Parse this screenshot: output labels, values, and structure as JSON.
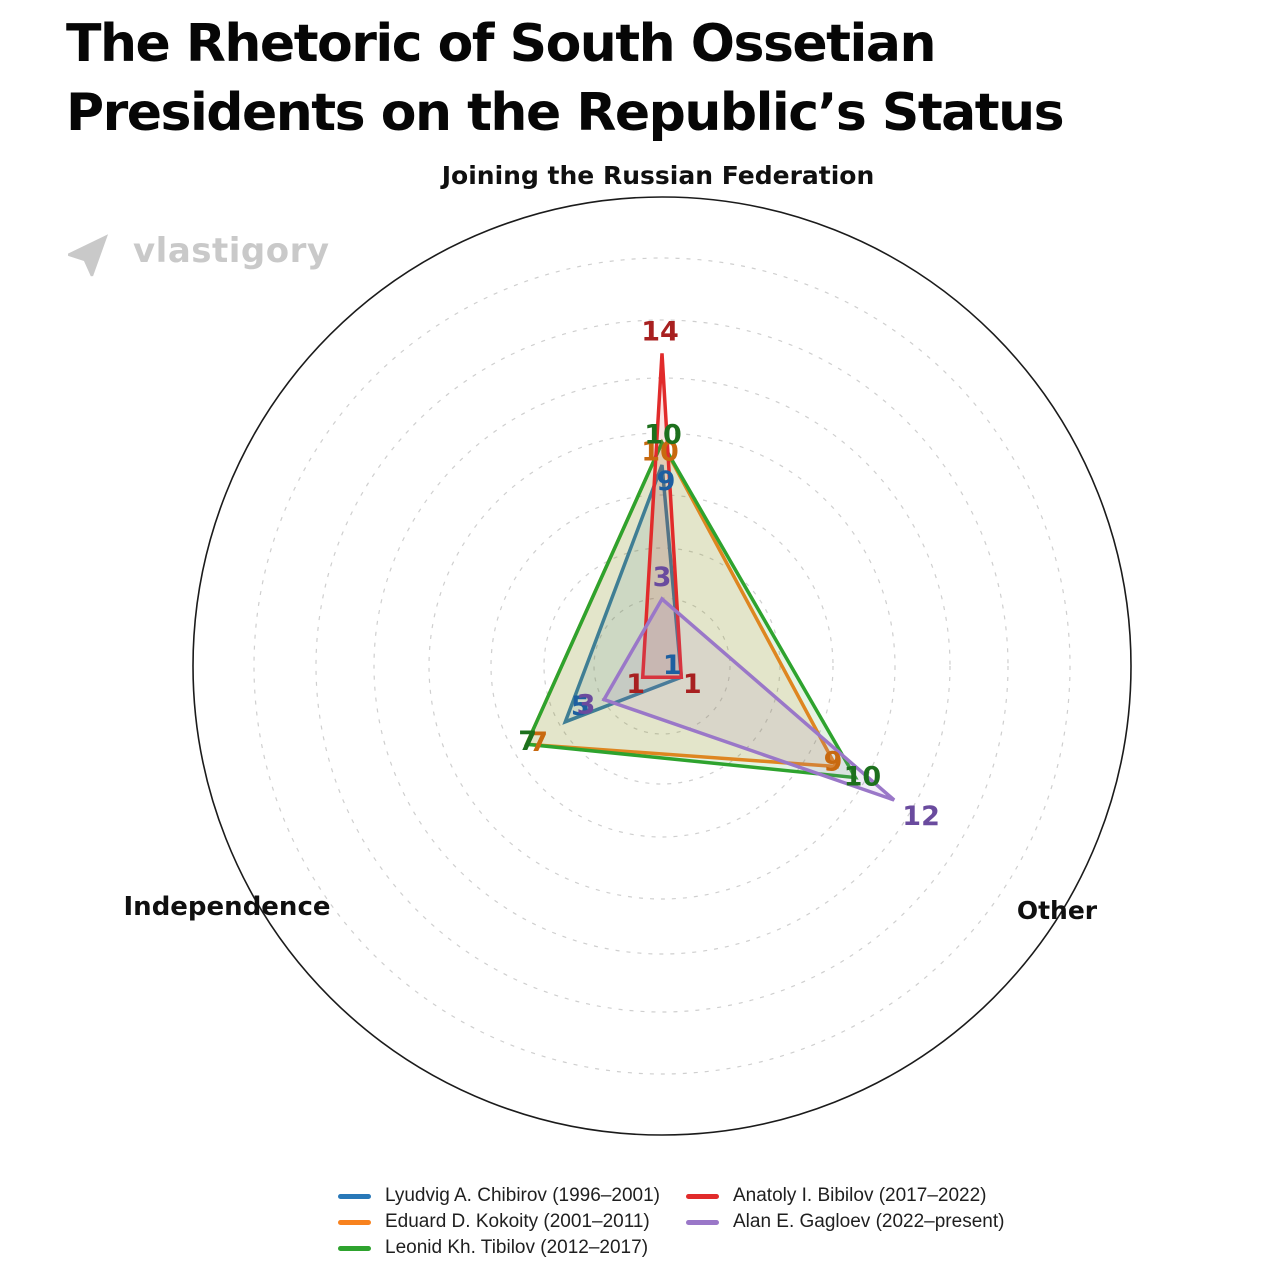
{
  "title": "The Rhetoric of South Ossetian Presidents on the Republic’s Status",
  "watermark": "vlastigory",
  "chart_data": {
    "type": "radar",
    "axes": [
      "Joining the Russian Federation",
      "Independence",
      "Other"
    ],
    "series": [
      {
        "name": "Lyudvig A. Chibirov (1996–2001)",
        "color": "#2878b8",
        "label_color": "#1d5fa0",
        "values": [
          9,
          5,
          1
        ]
      },
      {
        "name": "Eduard D. Kokoity (2001–2011)",
        "color": "#f8821e",
        "label_color": "#c8690f",
        "values": [
          10,
          7,
          9
        ]
      },
      {
        "name": "Leonid Kh. Tibilov (2012–2017)",
        "color": "#2ea32e",
        "label_color": "#1d701d",
        "values": [
          10,
          7,
          10
        ]
      },
      {
        "name": "Anatoly I. Bibilov (2017–2022)",
        "color": "#e12b2b",
        "label_color": "#a82020",
        "values": [
          14,
          1,
          1
        ]
      },
      {
        "name": "Alan E. Gagloev (2022–present)",
        "color": "#9a77c8",
        "label_color": "#6a4b9e",
        "values": [
          3,
          3,
          12
        ]
      }
    ],
    "rmax": 21,
    "grid": "dashed concentric circles",
    "legend_position": "bottom",
    "value_labels": "shown at each vertex in series color"
  }
}
